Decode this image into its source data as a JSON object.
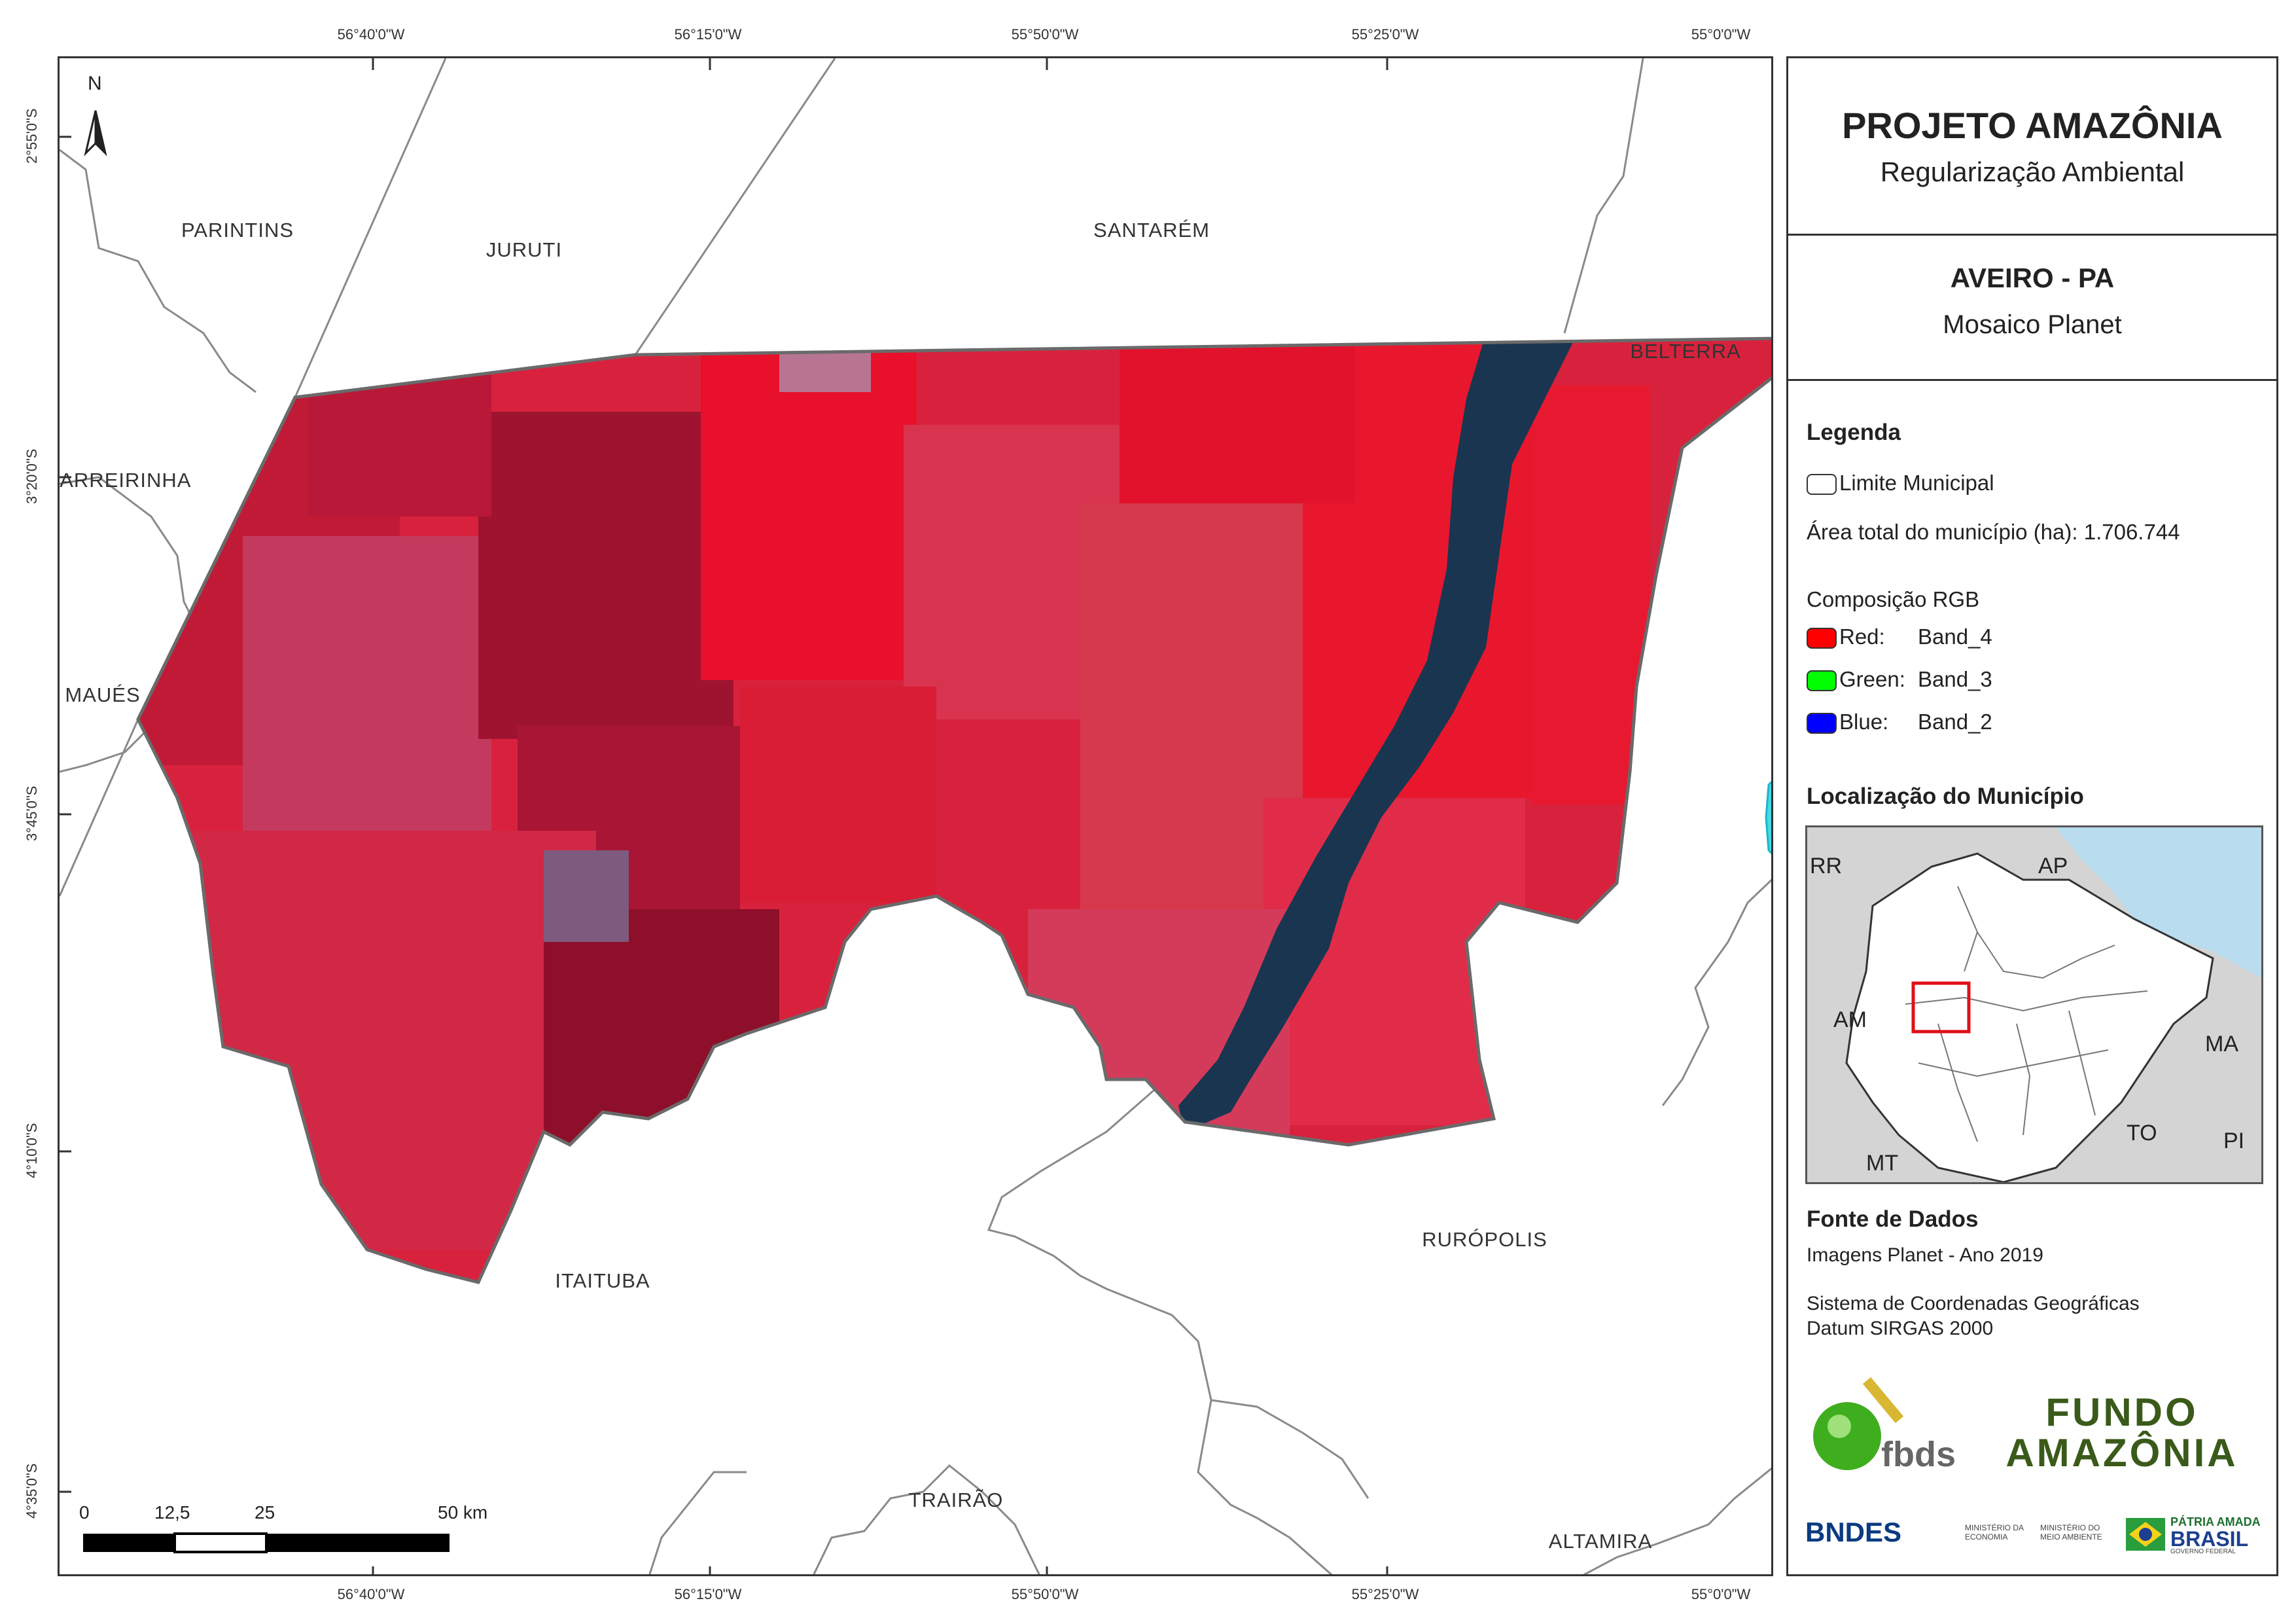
{
  "title": "PROJETO AMAZÔNIA",
  "subtitle": "Regularização Ambiental",
  "municipality": "AVEIRO - PA",
  "map_type": "Mosaico Planet",
  "legend": {
    "heading": "Legenda",
    "boundary_label": "Limite Municipal",
    "area_label": "Área total do município (ha): 1.706.744",
    "rgb_heading": "Composição RGB",
    "bands": [
      {
        "label": "Red:",
        "band": "Band_4",
        "color": "#ff0000"
      },
      {
        "label": "Green:",
        "band": "Band_3",
        "color": "#00ff00"
      },
      {
        "label": "Blue:",
        "band": "Band_2",
        "color": "#0000ff"
      }
    ]
  },
  "location": {
    "heading": "Localização do Município",
    "states": [
      "RR",
      "AP",
      "AM",
      "MA",
      "TO",
      "PI",
      "MT"
    ]
  },
  "sources": {
    "heading": "Fonte de Dados",
    "imagery": "Imagens Planet - Ano 2019",
    "crs_line1": "Sistema de Coordenadas Geográficas",
    "crs_line2": "Datum SIRGAS 2000"
  },
  "logos": {
    "fbds": "fbds",
    "fundo_line1": "FUNDO",
    "fundo_line2": "AMAZÔNIA",
    "bndes": "BNDES",
    "min_economia": "MINISTÉRIO DA ECONOMIA",
    "min_ambiente": "MINISTÉRIO DO MEIO AMBIENTE",
    "patria": "PÁTRIA AMADA",
    "brasil": "BRASIL",
    "gov": "GOVERNO FEDERAL"
  },
  "north_label": "N",
  "longitudes": [
    "56°40'0\"W",
    "56°15'0\"W",
    "55°50'0\"W",
    "55°25'0\"W",
    "55°0'0\"W"
  ],
  "latitudes": [
    "2°55'0\"S",
    "3°20'0\"S",
    "3°45'0\"S",
    "4°10'0\"S",
    "4°35'0\"S"
  ],
  "places": {
    "parintins": "PARINTINS",
    "juruti": "JURUTI",
    "santarem": "SANTARÉM",
    "belterra": "BELTERRA",
    "barreirinha": "BARREIRINHA",
    "maues": "MAUÉS",
    "itaituba": "ITAITUBA",
    "ruropolis": "RURÓPOLIS",
    "trairao": "TRAIRÃO",
    "altamira": "ALTAMIRA"
  },
  "scale_bar": {
    "labels": [
      "0",
      "12,5",
      "25",
      "50 km"
    ]
  },
  "colors": {
    "vegetation": "#d81e3a",
    "water": "#1a3550",
    "frame": "#333333",
    "ocean": "#b9dcee"
  }
}
